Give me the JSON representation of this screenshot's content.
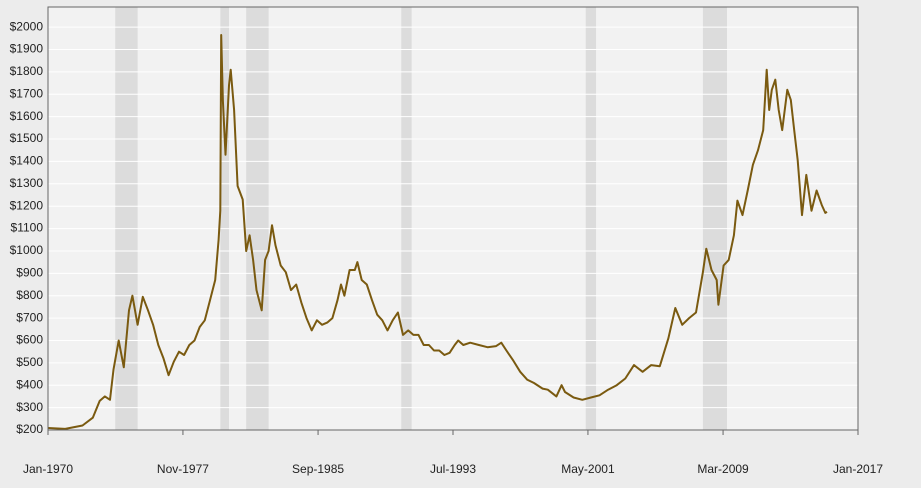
{
  "chart_data": {
    "type": "line",
    "x": [
      1970.0,
      1971.0,
      1972.0,
      1972.6,
      1973.0,
      1973.3,
      1973.6,
      1973.8,
      1974.1,
      1974.4,
      1974.7,
      1974.9,
      1975.2,
      1975.5,
      1975.8,
      1976.1,
      1976.4,
      1976.7,
      1977.0,
      1977.3,
      1977.6,
      1977.9,
      1978.2,
      1978.5,
      1978.8,
      1979.1,
      1979.4,
      1979.7,
      1979.9,
      1980.0,
      1980.05,
      1980.15,
      1980.3,
      1980.5,
      1980.6,
      1980.8,
      1981.0,
      1981.3,
      1981.5,
      1981.7,
      1981.9,
      1982.1,
      1982.4,
      1982.6,
      1982.8,
      1983.0,
      1983.2,
      1983.5,
      1983.8,
      1984.1,
      1984.4,
      1984.7,
      1985.0,
      1985.3,
      1985.6,
      1985.9,
      1986.2,
      1986.5,
      1986.8,
      1987.0,
      1987.2,
      1987.5,
      1987.8,
      1987.95,
      1988.2,
      1988.5,
      1988.8,
      1989.1,
      1989.4,
      1989.7,
      1990.0,
      1990.3,
      1990.6,
      1990.9,
      1991.2,
      1991.5,
      1991.8,
      1992.1,
      1992.4,
      1992.7,
      1993.0,
      1993.3,
      1993.6,
      1993.8,
      1994.1,
      1994.5,
      1995.0,
      1995.5,
      1996.0,
      1996.3,
      1996.6,
      1997.0,
      1997.4,
      1997.8,
      1998.2,
      1998.7,
      1999.0,
      1999.5,
      1999.8,
      2000.0,
      2000.5,
      2001.0,
      2001.5,
      2002.0,
      2002.5,
      2003.0,
      2003.5,
      2004.0,
      2004.5,
      2005.0,
      2005.5,
      2006.0,
      2006.4,
      2006.8,
      2007.2,
      2007.6,
      2008.0,
      2008.2,
      2008.5,
      2008.8,
      2008.9,
      2009.2,
      2009.5,
      2009.8,
      2010.0,
      2010.3,
      2010.6,
      2010.9,
      2011.2,
      2011.5,
      2011.7,
      2011.85,
      2012.0,
      2012.2,
      2012.4,
      2012.6,
      2012.9,
      2013.1,
      2013.3,
      2013.5,
      2013.75,
      2014.0,
      2014.3,
      2014.6,
      2014.9,
      2015.1,
      2015.2
    ],
    "series": [
      {
        "color": "#7a5a10",
        "values": [
          209,
          205,
          220,
          255,
          330,
          350,
          335,
          470,
          600,
          480,
          735,
          800,
          670,
          795,
          735,
          670,
          580,
          520,
          445,
          505,
          550,
          535,
          580,
          600,
          660,
          690,
          780,
          870,
          1050,
          1180,
          1965,
          1670,
          1430,
          1740,
          1810,
          1630,
          1290,
          1230,
          1000,
          1070,
          960,
          825,
          735,
          960,
          1000,
          1115,
          1025,
          935,
          905,
          825,
          850,
          770,
          700,
          645,
          690,
          670,
          680,
          700,
          780,
          850,
          800,
          915,
          915,
          950,
          870,
          850,
          780,
          715,
          690,
          645,
          690,
          725,
          625,
          645,
          625,
          625,
          580,
          580,
          555,
          555,
          535,
          545,
          580,
          600,
          580,
          590,
          580,
          570,
          575,
          590,
          555,
          510,
          460,
          425,
          410,
          385,
          380,
          350,
          400,
          370,
          345,
          335,
          345,
          355,
          380,
          400,
          430,
          490,
          460,
          490,
          485,
          610,
          745,
          670,
          700,
          725,
          905,
          1010,
          915,
          870,
          760,
          935,
          960,
          1070,
          1225,
          1160,
          1270,
          1385,
          1450,
          1540,
          1810,
          1630,
          1720,
          1765,
          1630,
          1540,
          1720,
          1675,
          1540,
          1405,
          1160,
          1340,
          1180,
          1270,
          1205,
          1170,
          1175
        ]
      }
    ],
    "shaded_ranges": [
      [
        1973.9,
        1975.2
      ],
      [
        1980.0,
        1980.5
      ],
      [
        1981.5,
        1982.8
      ],
      [
        1990.5,
        1991.1
      ],
      [
        2001.2,
        2001.8
      ],
      [
        2008.0,
        2009.4
      ]
    ],
    "shade_color": "#dcdcdc",
    "xlim": [
      1970,
      2017
    ],
    "xticks": [
      {
        "value": 1970,
        "label": "Jan-1970"
      },
      {
        "value": 1977.83,
        "label": "Nov-1977"
      },
      {
        "value": 1985.67,
        "label": "Sep-1985"
      },
      {
        "value": 1993.5,
        "label": "Jul-1993"
      },
      {
        "value": 2001.33,
        "label": "May-2001"
      },
      {
        "value": 2009.17,
        "label": "Mar-2009"
      },
      {
        "value": 2017,
        "label": "Jan-2017"
      }
    ],
    "ylim": [
      200,
      2090
    ],
    "yticks": [
      {
        "value": 200,
        "label": "$200"
      },
      {
        "value": 300,
        "label": "$300"
      },
      {
        "value": 400,
        "label": "$400"
      },
      {
        "value": 500,
        "label": "$500"
      },
      {
        "value": 600,
        "label": "$600"
      },
      {
        "value": 700,
        "label": "$700"
      },
      {
        "value": 800,
        "label": "$800"
      },
      {
        "value": 900,
        "label": "$900"
      },
      {
        "value": 1000,
        "label": "$1000"
      },
      {
        "value": 1100,
        "label": "$1100"
      },
      {
        "value": 1200,
        "label": "$1200"
      },
      {
        "value": 1300,
        "label": "$1300"
      },
      {
        "value": 1400,
        "label": "$1400"
      },
      {
        "value": 1500,
        "label": "$1500"
      },
      {
        "value": 1600,
        "label": "$1600"
      },
      {
        "value": 1700,
        "label": "$1700"
      },
      {
        "value": 1800,
        "label": "$1800"
      },
      {
        "value": 1900,
        "label": "$1900"
      },
      {
        "value": 2000,
        "label": "$2000"
      }
    ],
    "grid": true
  }
}
